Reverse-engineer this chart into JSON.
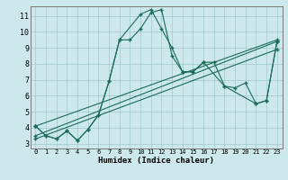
{
  "xlabel": "Humidex (Indice chaleur)",
  "xlim": [
    -0.5,
    23.5
  ],
  "ylim": [
    2.7,
    11.6
  ],
  "xticks": [
    0,
    1,
    2,
    3,
    4,
    5,
    6,
    7,
    8,
    9,
    10,
    11,
    12,
    13,
    14,
    15,
    16,
    17,
    18,
    19,
    20,
    21,
    22,
    23
  ],
  "yticks": [
    3,
    4,
    5,
    6,
    7,
    8,
    9,
    10,
    11
  ],
  "background_color": "#cce8ec",
  "grid_color": "#a0c8cc",
  "line_color": "#1a6b5a",
  "line1_x": [
    0,
    1,
    2,
    3,
    4,
    5,
    6,
    7,
    8,
    10,
    11,
    12,
    13,
    14,
    15,
    16,
    18,
    19,
    20,
    21,
    22,
    23
  ],
  "line1_y": [
    4.1,
    3.5,
    3.3,
    3.8,
    3.2,
    3.9,
    4.8,
    6.9,
    9.5,
    11.1,
    11.4,
    10.2,
    9.0,
    7.5,
    7.5,
    8.1,
    6.6,
    6.5,
    6.8,
    5.5,
    5.7,
    9.4
  ],
  "line2_x": [
    0,
    1,
    2,
    3,
    4,
    5,
    6,
    7,
    8,
    9,
    10,
    11,
    12,
    13,
    14,
    15,
    16,
    17,
    18,
    21,
    22,
    23
  ],
  "line2_y": [
    4.1,
    3.5,
    3.3,
    3.8,
    3.2,
    3.9,
    4.8,
    6.9,
    9.5,
    9.5,
    10.2,
    11.2,
    11.4,
    8.5,
    7.5,
    7.5,
    8.1,
    8.1,
    6.6,
    5.5,
    5.7,
    9.4
  ],
  "line3_x": [
    0,
    23
  ],
  "line3_y": [
    3.5,
    9.4
  ],
  "line4_x": [
    0,
    23
  ],
  "line4_y": [
    3.3,
    8.9
  ],
  "line5_x": [
    0,
    23
  ],
  "line5_y": [
    4.1,
    9.5
  ]
}
